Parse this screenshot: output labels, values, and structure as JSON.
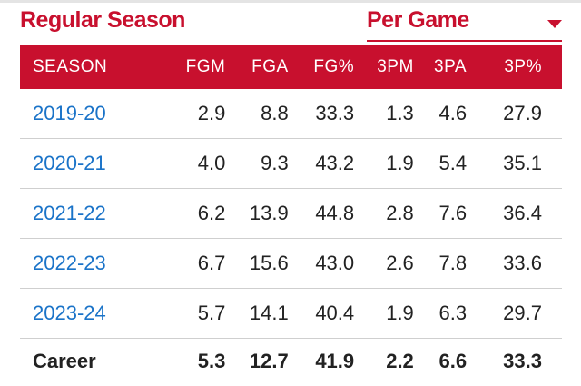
{
  "title": "Regular Season",
  "mode_select": {
    "value": "Per Game"
  },
  "colors": {
    "accent": "#c8102e",
    "link": "#1a73c8"
  },
  "columns": [
    "SEASON",
    "FGM",
    "FGA",
    "FG%",
    "3PM",
    "3PA",
    "3P%"
  ],
  "rows": [
    [
      "2019-20",
      "2.9",
      "8.8",
      "33.3",
      "1.3",
      "4.6",
      "27.9"
    ],
    [
      "2020-21",
      "4.0",
      "9.3",
      "43.2",
      "1.9",
      "5.4",
      "35.1"
    ],
    [
      "2021-22",
      "6.2",
      "13.9",
      "44.8",
      "2.8",
      "7.6",
      "36.4"
    ],
    [
      "2022-23",
      "6.7",
      "15.6",
      "43.0",
      "2.6",
      "7.8",
      "33.6"
    ],
    [
      "2023-24",
      "5.7",
      "14.1",
      "40.4",
      "1.9",
      "6.3",
      "29.7"
    ]
  ],
  "career": [
    "Career",
    "5.3",
    "12.7",
    "41.9",
    "2.2",
    "6.6",
    "33.3"
  ]
}
